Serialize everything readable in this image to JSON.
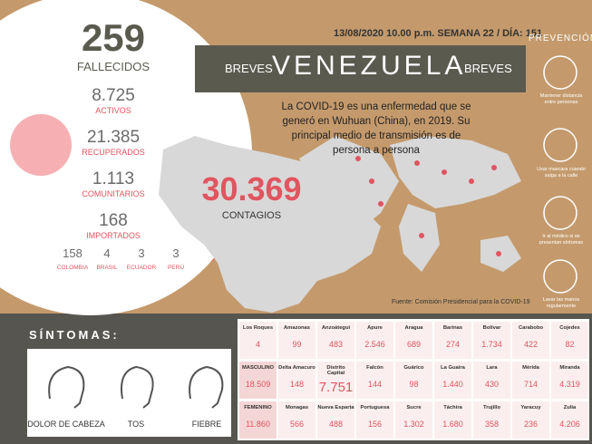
{
  "header": {
    "date_line": "13/08/2020 10.00 p.m. SEMANA 22 / DÍA: 151",
    "brand_left": "BREVES",
    "title": "VENEZUELA",
    "brand_right": "BREVES"
  },
  "summary": {
    "deaths": {
      "value": "259",
      "label": "FALLECIDOS"
    },
    "stats": [
      {
        "value": "8.725",
        "label": "ACTIVOS"
      },
      {
        "value": "21.385",
        "label": "RECUPERADOS"
      },
      {
        "value": "1.113",
        "label": "COMUNITARIOS"
      },
      {
        "value": "168",
        "label": "IMPORTADOS"
      }
    ],
    "imported": [
      {
        "value": "158",
        "label": "COLOMBIA"
      },
      {
        "value": "4",
        "label": "BRASIL"
      },
      {
        "value": "3",
        "label": "ECUADOR"
      },
      {
        "value": "3",
        "label": "PERÚ"
      }
    ]
  },
  "description": "La COVID-19 es una enfermedad que se generó en Wuhuan (China), en 2019. Su principal medio de transmisión es de persona a persona",
  "cases": {
    "value": "30.369",
    "label": "CONTAGIOS"
  },
  "source": "Fuente: Comisión Presidencial para la COVID-19",
  "prevention": {
    "title": "PREVENCIÓN",
    "items": [
      "Mantener distancia entre personas",
      "Usar mascara cuando salga a la calle",
      "Ir al médico si se presentan síntomas",
      "Lavar las manos regularmente"
    ]
  },
  "symptoms": {
    "title": "SÍNTOMAS:",
    "items": [
      "DOLOR DE CABEZA",
      "TOS",
      "FIEBRE"
    ]
  },
  "table": {
    "rows": [
      [
        [
          "Los Roques",
          "4"
        ],
        [
          "Amazonas",
          "99"
        ],
        [
          "Anzoátegui",
          "483"
        ],
        [
          "Apure",
          "2.546"
        ],
        [
          "Aragua",
          "689"
        ],
        [
          "Barinas",
          "274"
        ],
        [
          "Bolívar",
          "1.734"
        ],
        [
          "Carabobo",
          "422"
        ],
        [
          "Cojedes",
          "82"
        ]
      ],
      [
        [
          "MASCULINO",
          "18.509"
        ],
        [
          "Delta Amacuro",
          "148"
        ],
        [
          "Distrito Capital",
          "7.751"
        ],
        [
          "Falcón",
          "144"
        ],
        [
          "Guárico",
          "98"
        ],
        [
          "La Guaira",
          "1.440"
        ],
        [
          "Lara",
          "430"
        ],
        [
          "Mérida",
          "714"
        ],
        [
          "Miranda",
          "4.319"
        ]
      ],
      [
        [
          "FEMENINO",
          "11.860"
        ],
        [
          "Monagas",
          "566"
        ],
        [
          "Nueva Esparta",
          "488"
        ],
        [
          "Portuguesa",
          "156"
        ],
        [
          "Sucre",
          "1.302"
        ],
        [
          "Táchira",
          "1.680"
        ],
        [
          "Trujillo",
          "358"
        ],
        [
          "Yaracuy",
          "236"
        ],
        [
          "Zulia",
          "4.206"
        ]
      ]
    ]
  }
}
